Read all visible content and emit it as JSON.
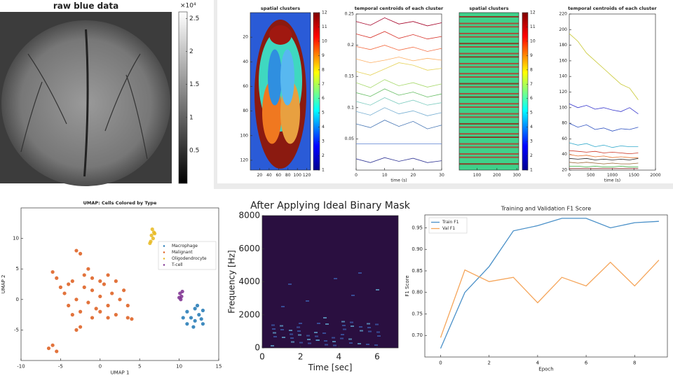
{
  "chart_data": [
    {
      "type": "image",
      "title": "raw blue data",
      "colorbar": {
        "clim": [
          0,
          2.6
        ],
        "ticks": [
          0.5,
          1,
          1.5,
          2,
          2.5
        ],
        "label": "×10⁴"
      }
    },
    {
      "type": "image",
      "title": "spatial clusters",
      "xlim": [
        0,
        128
      ],
      "xticks": [
        20,
        40,
        60,
        80,
        100,
        120
      ],
      "ylim": [
        0,
        128
      ],
      "yticks": [
        20,
        40,
        60,
        80,
        100,
        120
      ],
      "y_reversed": true,
      "colorbar": {
        "clim": [
          1,
          12
        ],
        "ticks": [
          1,
          2,
          3,
          4,
          5,
          6,
          7,
          8,
          9,
          10,
          11,
          12
        ]
      }
    },
    {
      "type": "line",
      "title": "temporal centroids of each cluster",
      "xlabel": "time (s)",
      "x": [
        0,
        5,
        10,
        15,
        20,
        25,
        30
      ],
      "xlim": [
        0,
        30
      ],
      "xticks": [
        0,
        10,
        20,
        30
      ],
      "ylim": [
        0,
        0.25
      ],
      "yticks": [
        0.05,
        0.1,
        0.15,
        0.2,
        0.25
      ],
      "series": [
        {
          "color": "#a50026",
          "values": [
            0.238,
            0.232,
            0.244,
            0.234,
            0.238,
            0.231,
            0.236
          ]
        },
        {
          "color": "#d73027",
          "values": [
            0.218,
            0.212,
            0.222,
            0.211,
            0.217,
            0.21,
            0.214
          ]
        },
        {
          "color": "#f46d43",
          "values": [
            0.198,
            0.193,
            0.2,
            0.192,
            0.197,
            0.19,
            0.195
          ]
        },
        {
          "color": "#fdae61",
          "values": [
            0.178,
            0.172,
            0.176,
            0.181,
            0.175,
            0.179,
            0.176
          ]
        },
        {
          "color": "#e6d35a",
          "values": [
            0.158,
            0.152,
            0.162,
            0.172,
            0.168,
            0.16,
            0.163
          ]
        },
        {
          "color": "#a6d96a",
          "values": [
            0.14,
            0.132,
            0.145,
            0.135,
            0.14,
            0.133,
            0.138
          ]
        },
        {
          "color": "#66bd63",
          "values": [
            0.124,
            0.118,
            0.13,
            0.12,
            0.125,
            0.117,
            0.122
          ]
        },
        {
          "color": "#80cdc1",
          "values": [
            0.11,
            0.104,
            0.116,
            0.106,
            0.112,
            0.104,
            0.108
          ]
        },
        {
          "color": "#74add1",
          "values": [
            0.094,
            0.088,
            0.1,
            0.09,
            0.095,
            0.087,
            0.092
          ]
        },
        {
          "color": "#4575b4",
          "values": [
            0.074,
            0.068,
            0.08,
            0.07,
            0.078,
            0.066,
            0.072
          ]
        },
        {
          "color": "#5a7fd0",
          "values": [
            0.042,
            0.042,
            0.042,
            0.042,
            0.042,
            0.042,
            0.042
          ]
        },
        {
          "color": "#313695",
          "values": [
            0.018,
            0.012,
            0.02,
            0.014,
            0.019,
            0.012,
            0.015
          ]
        }
      ]
    },
    {
      "type": "image",
      "title": "spatial clusters",
      "xlim": [
        10,
        310
      ],
      "xticks": [
        100,
        200,
        300
      ],
      "colorbar": {
        "clim": [
          1,
          12
        ],
        "ticks": [
          1,
          2,
          3,
          4,
          5,
          6,
          7,
          8,
          9,
          10,
          11,
          12
        ]
      }
    },
    {
      "type": "line",
      "title": "temporal centroids of each cluster",
      "xlabel": "time (s)",
      "x": [
        0,
        200,
        400,
        600,
        800,
        1000,
        1200,
        1400,
        1600
      ],
      "xlim": [
        0,
        2000
      ],
      "xticks": [
        0,
        500,
        1000,
        1500,
        2000
      ],
      "ylim": [
        20,
        220
      ],
      "yticks": [
        20,
        40,
        60,
        80,
        100,
        120,
        140,
        160,
        180,
        200,
        220
      ],
      "series": [
        {
          "color": "#c8c832",
          "values": [
            195,
            185,
            170,
            160,
            150,
            140,
            130,
            125,
            110
          ]
        },
        {
          "color": "#3333cc",
          "values": [
            105,
            100,
            103,
            98,
            100,
            97,
            95,
            100,
            92
          ]
        },
        {
          "color": "#2b4fc0",
          "values": [
            80,
            75,
            78,
            72,
            74,
            70,
            73,
            72,
            75
          ]
        },
        {
          "color": "#33aacc",
          "values": [
            55,
            52,
            54,
            50,
            52,
            49,
            51,
            50,
            50
          ]
        },
        {
          "color": "#cc3322",
          "values": [
            45,
            44,
            43,
            44,
            42,
            43,
            42,
            41,
            42
          ]
        },
        {
          "color": "#e8702a",
          "values": [
            40,
            38,
            39,
            37,
            38,
            36,
            37,
            36,
            36
          ]
        },
        {
          "color": "#222222",
          "values": [
            35,
            34,
            35,
            33,
            34,
            33,
            34,
            33,
            35
          ]
        },
        {
          "color": "#996633",
          "values": [
            30,
            29,
            30,
            29,
            28,
            29,
            28,
            28,
            29
          ]
        },
        {
          "color": "#33aa33",
          "values": [
            25,
            25,
            24,
            25,
            24,
            24,
            25,
            24,
            24
          ]
        },
        {
          "color": "#882222",
          "values": [
            22,
            22,
            22,
            22,
            22,
            22,
            22,
            22,
            22
          ]
        }
      ]
    },
    {
      "type": "scatter",
      "title": "UMAP: Cells Colored by Type",
      "xlabel": "UMAP 1",
      "ylabel": "UMAP 2",
      "xlim": [
        -10,
        15
      ],
      "xticks": [
        -10,
        -5,
        0,
        5,
        10,
        15
      ],
      "ylim": [
        -10,
        15
      ],
      "yticks": [
        -5,
        0,
        5,
        10
      ],
      "legend": "center right",
      "series": [
        {
          "name": "Macrophage",
          "color": "#1f77b4",
          "x": [
            11,
            11.5,
            12,
            12.5,
            13,
            11,
            12,
            12.8,
            10.5,
            12.3,
            11.8,
            13
          ],
          "y": [
            -2,
            -3,
            -1.5,
            -2.5,
            -1.8,
            -4,
            -3.5,
            -3.2,
            -3,
            -1,
            -4.5,
            -4
          ]
        },
        {
          "name": "Malignant",
          "color": "#dd5a1a",
          "x": [
            -5,
            -4.5,
            -4,
            -3.5,
            -3,
            -2.5,
            -2,
            -1.5,
            -1,
            -0.5,
            0,
            0.5,
            1,
            1.5,
            2,
            2.5,
            3,
            -2,
            -1,
            0,
            -3.5,
            -1,
            1,
            -6,
            -5.5,
            -2.5,
            -3,
            -6.5,
            -5.5,
            -6,
            -3,
            -2.5,
            4,
            3.5,
            0,
            2,
            3.5,
            -4,
            -1.5,
            1
          ],
          "y": [
            2,
            1,
            -1,
            3,
            0,
            -2,
            2,
            -0.5,
            1.5,
            -1.5,
            0.5,
            2.5,
            -1,
            1,
            -2.5,
            0,
            1.5,
            4,
            3.5,
            3,
            -2.5,
            -3,
            -3,
            4.5,
            3.5,
            7.5,
            8,
            -8,
            -8.5,
            -7.5,
            -5,
            -4.5,
            -3.2,
            -3,
            -2,
            3,
            -1,
            2.5,
            5,
            4
          ]
        },
        {
          "name": "Oligodendrocyte",
          "color": "#e8b820",
          "x": [
            6.6,
            6.8,
            6.5,
            6.7,
            6.4,
            6.9,
            6.3
          ],
          "y": [
            11.5,
            11,
            10.5,
            10,
            9.5,
            10.8,
            9.2
          ]
        },
        {
          "name": "T-cell",
          "color": "#7b2d8e",
          "x": [
            10.1,
            10.3,
            10.2,
            10.4,
            10
          ],
          "y": [
            1,
            0.5,
            0,
            1.3,
            0.3
          ]
        }
      ]
    },
    {
      "type": "image",
      "title": "After Applying Ideal Binary Mask",
      "xlabel": "Time [sec]",
      "ylabel": "Frequency [Hz]",
      "xlim": [
        0,
        7.1
      ],
      "xticks": [
        0,
        2,
        4,
        6
      ],
      "ylim": [
        0,
        8000
      ],
      "yticks": [
        0,
        2000,
        4000,
        6000,
        8000
      ]
    },
    {
      "type": "line",
      "title": "Training and Validation F1 Score",
      "xlabel": "Epoch",
      "ylabel": "F1 Score",
      "x": [
        0,
        1,
        2,
        3,
        4,
        5,
        6,
        7,
        8,
        9
      ],
      "xlim": [
        -0.65,
        9.35
      ],
      "xticks": [
        0,
        2,
        4,
        6,
        8
      ],
      "ylim": [
        0.65,
        0.98
      ],
      "yticks": [
        {
          "value": 0.7,
          "label": "0.70"
        },
        0.75,
        {
          "value": 0.8,
          "label": "0.80"
        },
        0.85,
        {
          "value": 0.9,
          "label": "0.90"
        },
        0.95
      ],
      "legend": "upper left",
      "series": [
        {
          "name": "Train F1",
          "color": "#4a90c8",
          "values": [
            0.67,
            0.8,
            0.86,
            0.943,
            0.955,
            0.972,
            0.972,
            0.95,
            0.962,
            0.965
          ]
        },
        {
          "name": "Val F1",
          "color": "#f5a55a",
          "values": [
            0.695,
            0.852,
            0.825,
            0.835,
            0.776,
            0.835,
            0.815,
            0.87,
            0.815,
            0.875
          ]
        }
      ]
    }
  ]
}
